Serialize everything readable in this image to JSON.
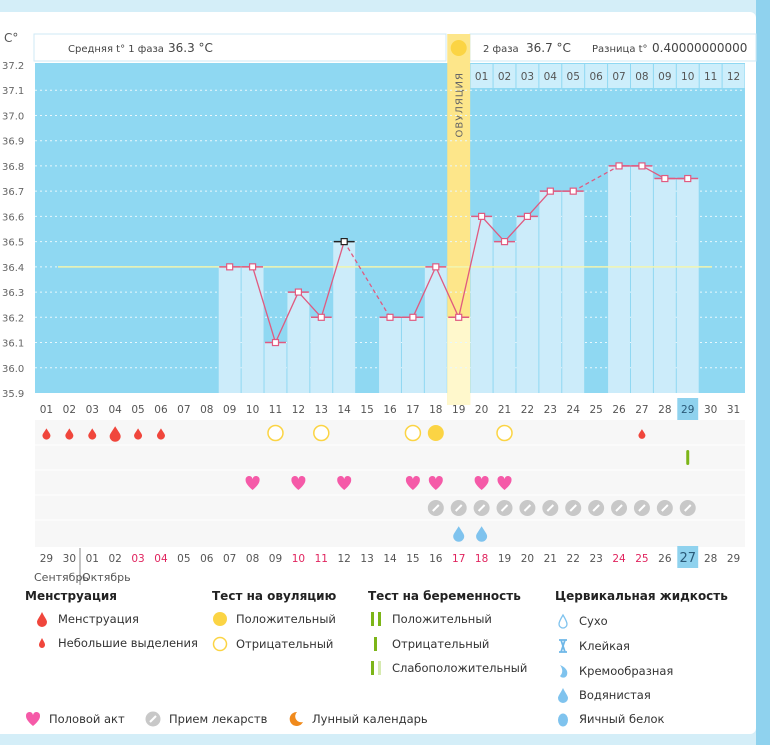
{
  "chart_data": {
    "type": "bar+line",
    "ylabel": "C°",
    "ylim": [
      35.9,
      37.2
    ],
    "yticks": [
      "37.2",
      "37.1",
      "37.0",
      "36.9",
      "36.8",
      "36.7",
      "36.6",
      "36.5",
      "36.4",
      "36.3",
      "36.2",
      "36.1",
      "36.0",
      "35.9"
    ],
    "coverline": 36.4,
    "days": [
      "01",
      "02",
      "03",
      "04",
      "05",
      "06",
      "07",
      "08",
      "09",
      "10",
      "11",
      "12",
      "13",
      "14",
      "15",
      "16",
      "17",
      "18",
      "19",
      "20",
      "21",
      "22",
      "23",
      "24",
      "25",
      "26",
      "27",
      "28",
      "29",
      "30",
      "31"
    ],
    "temperatures": [
      null,
      null,
      null,
      null,
      null,
      null,
      null,
      null,
      36.4,
      36.4,
      36.1,
      36.3,
      36.2,
      36.5,
      null,
      36.2,
      36.2,
      36.4,
      36.2,
      36.6,
      36.5,
      36.6,
      36.7,
      36.7,
      null,
      36.8,
      36.8,
      36.75,
      36.75,
      null,
      null
    ],
    "ovulation_day": 19,
    "ovulation_label": "ОВУЛЯЦИЯ",
    "today_day": 29,
    "phase2_days": [
      "01",
      "02",
      "03",
      "04",
      "05",
      "06",
      "07",
      "08",
      "09",
      "10",
      "11",
      "12"
    ],
    "calendar_dates": [
      "29",
      "30",
      "01",
      "02",
      "03",
      "04",
      "05",
      "06",
      "07",
      "08",
      "09",
      "10",
      "11",
      "12",
      "13",
      "14",
      "15",
      "16",
      "17",
      "18",
      "19",
      "20",
      "21",
      "22",
      "23",
      "24",
      "25",
      "26",
      "27",
      "28",
      "29"
    ],
    "calendar_red_dates_index": [
      4,
      5,
      11,
      12,
      18,
      19,
      25,
      26
    ],
    "months": [
      "Сентябрь",
      "Октябрь"
    ],
    "menstruation_days": [
      1,
      2,
      3,
      5,
      6
    ],
    "menstruation_heavy_days": [
      4
    ],
    "spotting_days": [
      27
    ],
    "ovulation_test_positive_days": [
      18
    ],
    "ovulation_test_negative_days": [
      11,
      13,
      17,
      21
    ],
    "pregnancy_test_negative_days": [
      29
    ],
    "intercourse_days": [
      10,
      12,
      14,
      17,
      18,
      20,
      21
    ],
    "medication_days": [
      18,
      19,
      20,
      21,
      22,
      23,
      24,
      25,
      26,
      27,
      28,
      29
    ],
    "egg_white_days": [
      19,
      20
    ]
  },
  "header": {
    "phase1_label": "Средняя t° 1 фаза",
    "phase1_value": "36.3 °C",
    "phase2_label": "2 фаза",
    "phase2_value": "36.7 °C",
    "diff_label": "Разница t°",
    "diff_value": "0.40000000000"
  },
  "colors": {
    "bg": "#8fd8f2",
    "bar": "#ccecfa",
    "line": "#e05a80",
    "ovulation": "#fde68a",
    "blood": "#f0463c",
    "heart": "#f55aa8",
    "pill": "#c8c8c8",
    "drop": "#7fc3ee",
    "yellow": "#fbd444",
    "green": "#7cb518"
  },
  "legend": {
    "menstruation": {
      "title": "Менструация",
      "items": [
        "Менструация",
        "Небольшие выделения"
      ]
    },
    "ovtest": {
      "title": "Тест на овуляцию",
      "items": [
        "Положительный",
        "Отрицательный"
      ]
    },
    "pregtest": {
      "title": "Тест на беременность",
      "items": [
        "Положительный",
        "Отрицательный",
        "Слабоположительный"
      ]
    },
    "cervical": {
      "title": "Цервикальная жидкость",
      "items": [
        "Сухо",
        "Клейкая",
        "Кремообразная",
        "Водянистая",
        "Яичный белок"
      ]
    },
    "bottom": [
      "Половой акт",
      "Прием лекарств",
      "Лунный календарь"
    ]
  }
}
